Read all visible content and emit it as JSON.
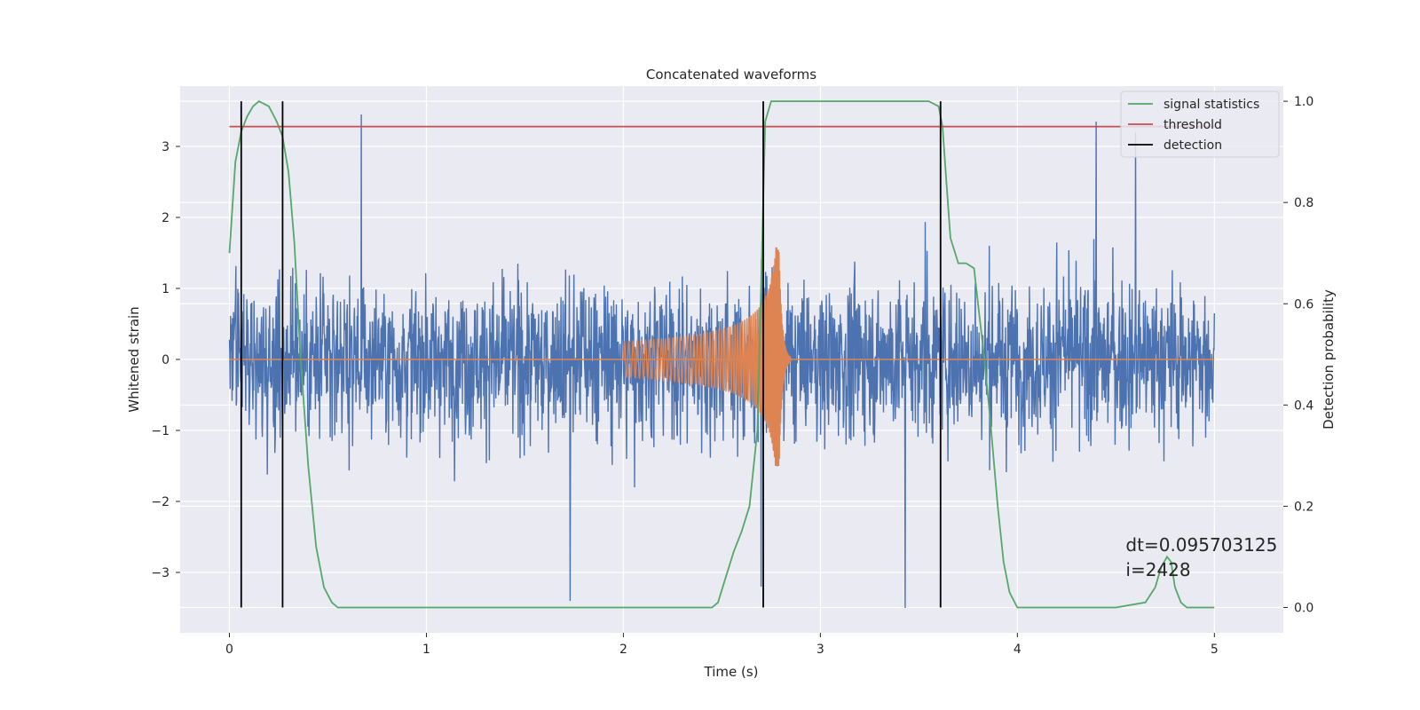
{
  "chart_data": {
    "type": "line",
    "title": "Concatenated waveforms",
    "xlabel": "Time (s)",
    "ylabel": "Whitened strain",
    "y2label": "Detection probability",
    "xlim": [
      -0.25,
      5.35
    ],
    "ylim": [
      -3.85,
      3.85
    ],
    "y2lim": [
      -0.05,
      1.03
    ],
    "xticks": [
      0,
      1,
      2,
      3,
      4,
      5
    ],
    "xtick_labels": [
      "0",
      "1",
      "2",
      "3",
      "4",
      "5"
    ],
    "yticks": [
      -3,
      -2,
      -1,
      0,
      1,
      2,
      3
    ],
    "ytick_labels": [
      "−3",
      "−2",
      "−1",
      "0",
      "1",
      "2",
      "3"
    ],
    "y2ticks": [
      0.0,
      0.2,
      0.4,
      0.6,
      0.8,
      1.0
    ],
    "y2tick_labels": [
      "0.0",
      "0.2",
      "0.4",
      "0.6",
      "0.8",
      "1.0"
    ],
    "grid": true,
    "legend_position": "top-right",
    "colors": {
      "background": "#eaeaf2",
      "grid": "#ffffff",
      "strain": "#4c72b0",
      "template": "#dd8452",
      "signal_statistics": "#55a868",
      "threshold": "#c44e52",
      "detection": "#000000"
    },
    "series": [
      {
        "name": "signal statistics",
        "axis": "right",
        "x": [
          0.0,
          0.03,
          0.06,
          0.09,
          0.12,
          0.15,
          0.2,
          0.24,
          0.27,
          0.3,
          0.33,
          0.36,
          0.4,
          0.44,
          0.48,
          0.52,
          0.55,
          0.6,
          1.0,
          1.5,
          2.0,
          2.3,
          2.45,
          2.48,
          2.52,
          2.56,
          2.6,
          2.64,
          2.68,
          2.7,
          2.72,
          2.75,
          2.8,
          3.0,
          3.3,
          3.55,
          3.6,
          3.62,
          3.64,
          3.66,
          3.7,
          3.74,
          3.78,
          3.8,
          3.83,
          3.86,
          3.9,
          3.93,
          3.96,
          4.0,
          4.2,
          4.5,
          4.65,
          4.7,
          4.73,
          4.76,
          4.78,
          4.8,
          4.83,
          4.86,
          4.9,
          5.0
        ],
        "y": [
          0.7,
          0.88,
          0.94,
          0.97,
          0.99,
          1.0,
          0.99,
          0.96,
          0.93,
          0.86,
          0.72,
          0.5,
          0.28,
          0.12,
          0.04,
          0.01,
          0.0,
          0.0,
          0.0,
          0.0,
          0.0,
          0.0,
          0.0,
          0.01,
          0.06,
          0.11,
          0.15,
          0.2,
          0.35,
          0.65,
          0.96,
          1.0,
          1.0,
          1.0,
          1.0,
          1.0,
          0.99,
          0.95,
          0.84,
          0.73,
          0.68,
          0.68,
          0.67,
          0.6,
          0.5,
          0.38,
          0.2,
          0.09,
          0.03,
          0.0,
          0.0,
          0.0,
          0.01,
          0.04,
          0.08,
          0.1,
          0.09,
          0.04,
          0.01,
          0.0,
          0.0,
          0.0
        ]
      },
      {
        "name": "threshold",
        "axis": "right",
        "x": [
          0,
          5
        ],
        "y": [
          0.95,
          0.95
        ]
      },
      {
        "name": "detection",
        "axis": "right",
        "vlines": [
          0.06,
          0.27,
          2.71,
          3.61
        ],
        "ymin": 0.0,
        "ymax": 1.0
      },
      {
        "axis": "left",
        "description_free": true,
        "x_range": [
          0,
          5
        ],
        "envelope_upper": 2.3,
        "envelope_lower": -2.3,
        "band_core": [
          -0.7,
          0.7
        ],
        "notable_peaks": [
          [
            0.67,
            3.45
          ],
          [
            4.4,
            3.35
          ],
          [
            4.6,
            3.2
          ],
          [
            1.73,
            -3.4
          ],
          [
            3.43,
            -3.5
          ],
          [
            2.7,
            -3.2
          ]
        ]
      },
      {
        "axis": "left",
        "x_range": [
          2.0,
          2.85
        ],
        "peak_time": 2.79,
        "peak_amplitude": 1.6,
        "start_amplitude": 0.25,
        "min_value": -1.5
      }
    ],
    "annotations": [
      {
        "text": "dt=0.095703125",
        "x": 4.55,
        "y": -2.7
      },
      {
        "text": " i=2428",
        "x": 4.55,
        "y": -3.05
      }
    ]
  }
}
